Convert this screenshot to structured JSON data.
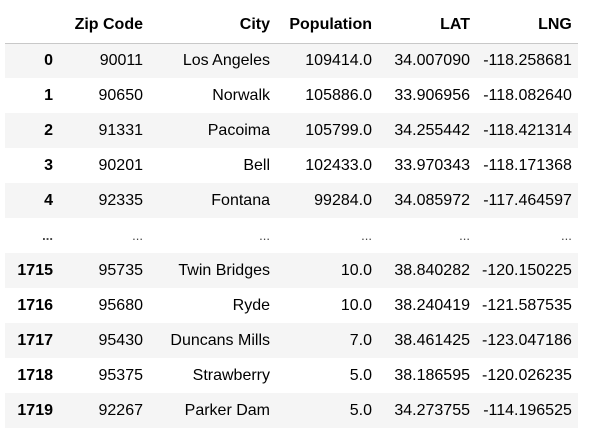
{
  "table": {
    "columns": [
      "",
      "Zip Code",
      "City",
      "Population",
      "LAT",
      "LNG"
    ],
    "rows": [
      {
        "index": "0",
        "zip": "90011",
        "city": "Los Angeles",
        "population": "109414.0",
        "lat": "34.007090",
        "lng": "-118.258681"
      },
      {
        "index": "1",
        "zip": "90650",
        "city": "Norwalk",
        "population": "105886.0",
        "lat": "33.906956",
        "lng": "-118.082640"
      },
      {
        "index": "2",
        "zip": "91331",
        "city": "Pacoima",
        "population": "105799.0",
        "lat": "34.255442",
        "lng": "-118.421314"
      },
      {
        "index": "3",
        "zip": "90201",
        "city": "Bell",
        "population": "102433.0",
        "lat": "33.970343",
        "lng": "-118.171368"
      },
      {
        "index": "4",
        "zip": "92335",
        "city": "Fontana",
        "population": "99284.0",
        "lat": "34.085972",
        "lng": "-117.464597"
      },
      {
        "index": "...",
        "zip": "...",
        "city": "...",
        "population": "...",
        "lat": "...",
        "lng": "..."
      },
      {
        "index": "1715",
        "zip": "95735",
        "city": "Twin Bridges",
        "population": "10.0",
        "lat": "38.840282",
        "lng": "-120.150225"
      },
      {
        "index": "1716",
        "zip": "95680",
        "city": "Ryde",
        "population": "10.0",
        "lat": "38.240419",
        "lng": "-121.587535"
      },
      {
        "index": "1717",
        "zip": "95430",
        "city": "Duncans Mills",
        "population": "7.0",
        "lat": "38.461425",
        "lng": "-123.047186"
      },
      {
        "index": "1718",
        "zip": "95375",
        "city": "Strawberry",
        "population": "5.0",
        "lat": "38.186595",
        "lng": "-120.026235"
      },
      {
        "index": "1719",
        "zip": "92267",
        "city": "Parker Dam",
        "population": "5.0",
        "lat": "34.273755",
        "lng": "-114.196525"
      }
    ]
  }
}
